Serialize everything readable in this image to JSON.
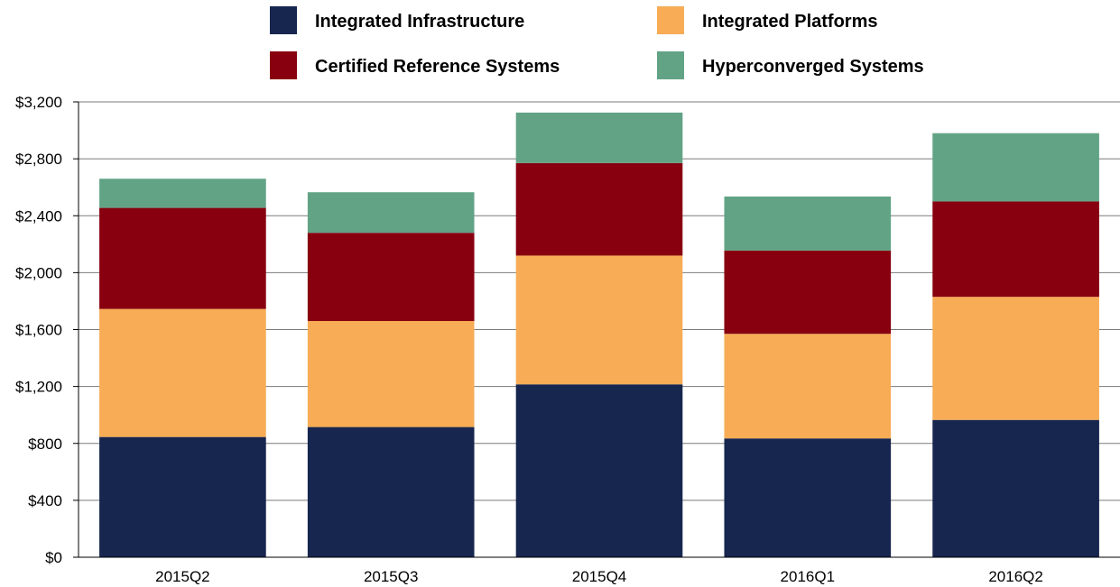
{
  "chart_data": {
    "type": "bar",
    "stacked": true,
    "title": "",
    "xlabel": "",
    "ylabel": "",
    "categories": [
      "2015Q2",
      "2015Q3",
      "2015Q4",
      "2016Q1",
      "2016Q2"
    ],
    "series": [
      {
        "name": "Integrated Infrastructure",
        "color": "#17264f",
        "values": [
          845,
          915,
          1215,
          835,
          965
        ]
      },
      {
        "name": "Integrated Platforms",
        "color": "#f7ac55",
        "values": [
          900,
          745,
          905,
          735,
          865
        ]
      },
      {
        "name": "Certified Reference Systems",
        "color": "#880010",
        "values": [
          710,
          620,
          650,
          585,
          670
        ]
      },
      {
        "name": "Hyperconverged Systems",
        "color": "#62a386",
        "values": [
          205,
          285,
          355,
          380,
          480
        ]
      }
    ],
    "ylim": [
      0,
      3200
    ],
    "yticks": [
      0,
      400,
      800,
      1200,
      1600,
      2000,
      2400,
      2800,
      3200
    ],
    "ytick_labels": [
      "$0",
      "$400",
      "$800",
      "$1,200",
      "$1,600",
      "$2,000",
      "$2,400",
      "$2,800",
      "$3,200"
    ],
    "grid": true,
    "legend_position": "top"
  }
}
